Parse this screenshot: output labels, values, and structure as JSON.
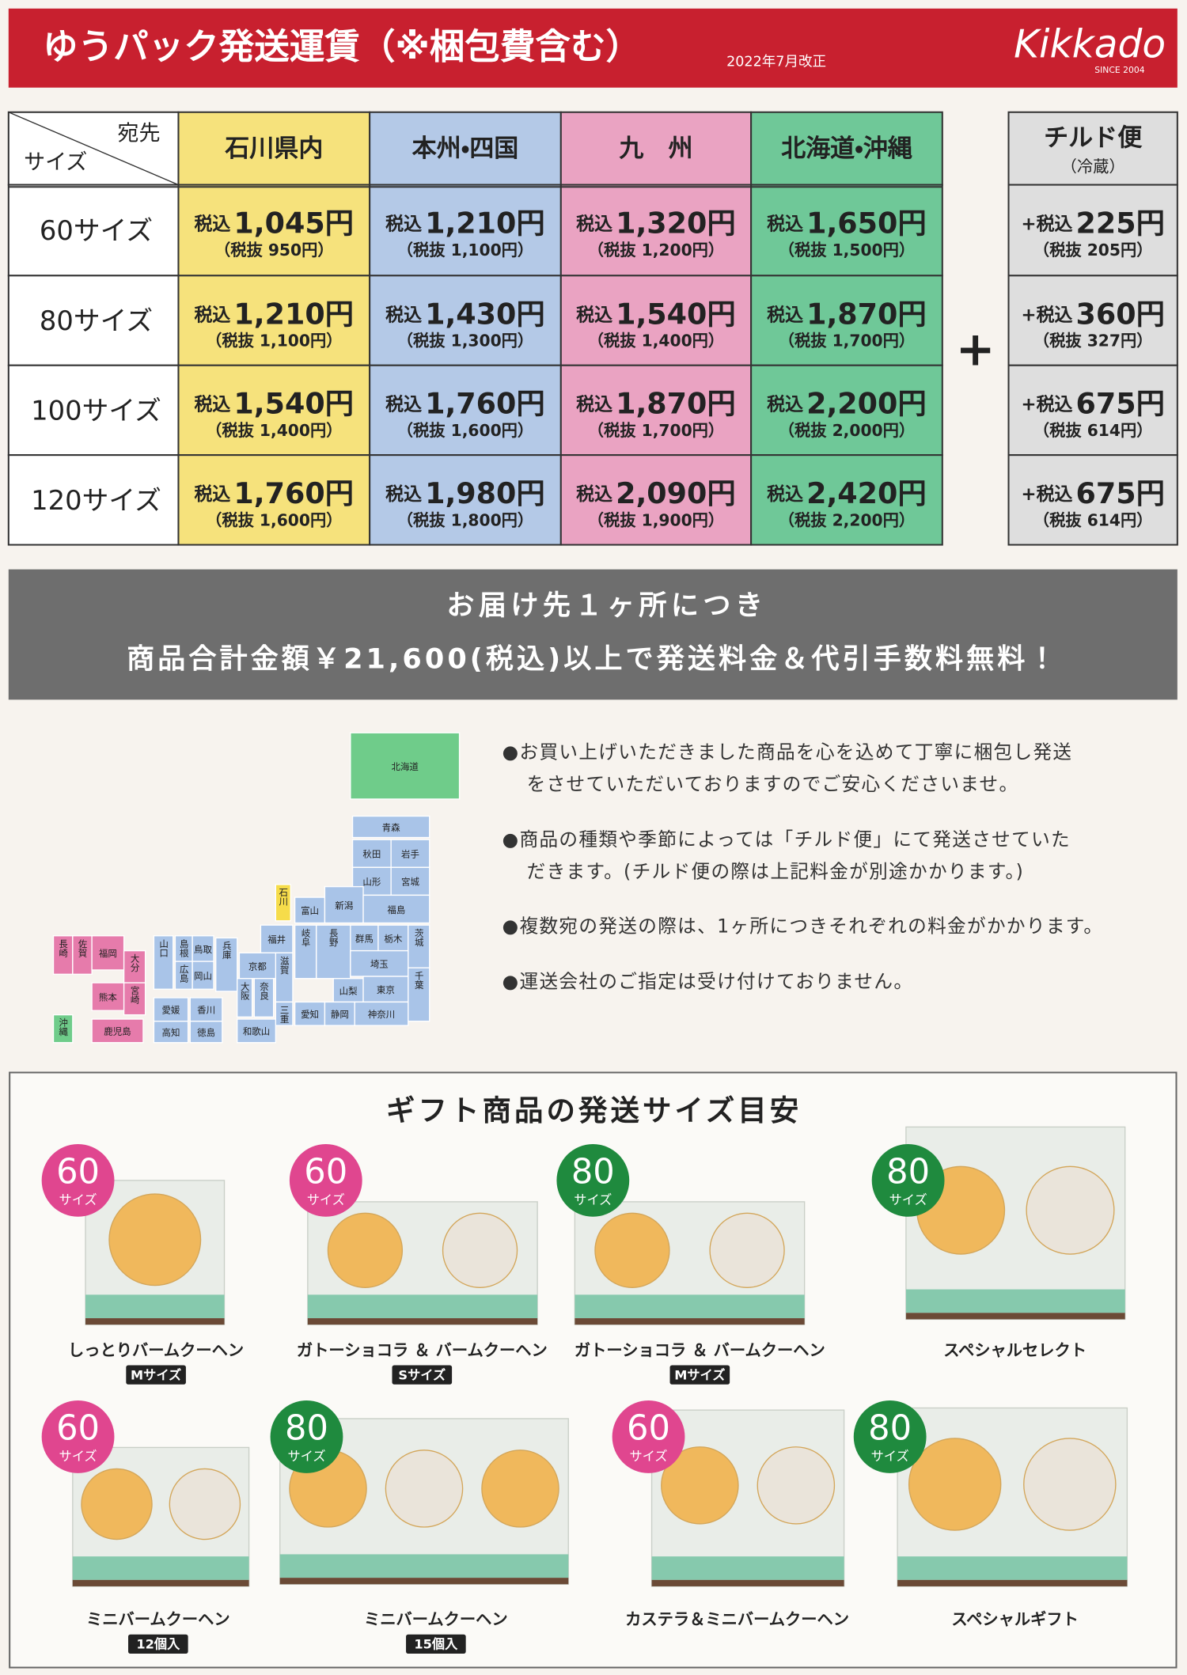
{
  "header": {
    "title": "ゆうパック発送運賃（※梱包費含む）",
    "note": "2022年7月改正",
    "logo": "Kikkado",
    "logo_sub": "SINCE 2004"
  },
  "table": {
    "corner_top": "宛先",
    "corner_bottom": "サイズ",
    "columns": [
      {
        "name": "石川県内",
        "color": "#f6e27c"
      },
      {
        "name": "本州・四国",
        "color": "#b4c9e7"
      },
      {
        "name": "九　州",
        "color": "#eaa3c2"
      },
      {
        "name": "北海道・沖縄",
        "color": "#6fc898"
      }
    ],
    "rows": [
      {
        "size": "60サイズ",
        "cells": [
          [
            "税込",
            "1,045円",
            "（税抜 950円）"
          ],
          [
            "税込",
            "1,210円",
            "（税抜 1,100円）"
          ],
          [
            "税込",
            "1,320円",
            "（税抜 1,200円）"
          ],
          [
            "税込",
            "1,650円",
            "（税抜 1,500円）"
          ]
        ]
      },
      {
        "size": "80サイズ",
        "cells": [
          [
            "税込",
            "1,210円",
            "（税抜 1,100円）"
          ],
          [
            "税込",
            "1,430円",
            "（税抜 1,300円）"
          ],
          [
            "税込",
            "1,540円",
            "（税抜 1,400円）"
          ],
          [
            "税込",
            "1,870円",
            "（税抜 1,700円）"
          ]
        ]
      },
      {
        "size": "100サイズ",
        "cells": [
          [
            "税込",
            "1,540円",
            "（税抜 1,400円）"
          ],
          [
            "税込",
            "1,760円",
            "（税抜 1,600円）"
          ],
          [
            "税込",
            "1,870円",
            "（税抜 1,700円）"
          ],
          [
            "税込",
            "2,200円",
            "（税抜 2,000円）"
          ]
        ]
      },
      {
        "size": "120サイズ",
        "cells": [
          [
            "税込",
            "1,760円",
            "（税抜 1,600円）"
          ],
          [
            "税込",
            "1,980円",
            "（税抜 1,800円）"
          ],
          [
            "税込",
            "2,090円",
            "（税抜 1,900円）"
          ],
          [
            "税込",
            "2,420円",
            "（税抜 2,200円）"
          ]
        ]
      }
    ]
  },
  "plus": "+",
  "chilled": {
    "title": "チルド便",
    "subtitle": "（冷蔵）",
    "color": "#dedede",
    "cells": [
      [
        "+税込",
        "225円",
        "（税抜 205円）"
      ],
      [
        "+税込",
        "360円",
        "（税抜 327円）"
      ],
      [
        "+税込",
        "675円",
        "（税抜 614円）"
      ],
      [
        "+税込",
        "675円",
        "（税抜 614円）"
      ]
    ]
  },
  "banner": {
    "lines": [
      "お届け先１ヶ所につき",
      "商品合計金額￥21,600(税込)以上で発送料金＆代引手数料無料！"
    ]
  },
  "map": {
    "labels": [
      "北海道",
      "青森",
      "秋田",
      "岩手",
      "山形",
      "宮城",
      "石川",
      "富山",
      "新潟",
      "福島",
      "群馬",
      "栃木",
      "茨城",
      "長野",
      "福井",
      "岐阜",
      "埼玉",
      "千葉",
      "山梨",
      "東京",
      "愛知",
      "静岡",
      "神奈川",
      "滋賀",
      "京都",
      "兵庫",
      "大阪",
      "奈良",
      "三重",
      "和歌山",
      "鳥取",
      "島根",
      "岡山",
      "広島",
      "山口",
      "愛媛",
      "香川",
      "高知",
      "徳島",
      "長崎",
      "佐賀",
      "福岡",
      "大分",
      "熊本",
      "宮崎",
      "鹿児島",
      "沖縄"
    ]
  },
  "notes": [
    [
      "●お買い上げいただきました商品を心を込めて丁寧に梱包し発送",
      "をさせていただいておりますのでご安心くださいませ。"
    ],
    [
      "●商品の種類や季節によっては「チルド便」にて発送させていた",
      "だきます。(チルド便の際は上記料金が別途かかります。)"
    ],
    [
      "●複数宛の発送の際は、1ヶ所につきそれぞれの料金がかかります。"
    ],
    [
      "●運送会社のご指定は受け付けておりません。"
    ]
  ],
  "gifts": {
    "title": "ギフト商品の発送サイズ目安",
    "items": [
      {
        "size": "60",
        "unit": "サイズ",
        "color": "#e0468f",
        "name": "しっとりバームクーヘン",
        "tag": "Mサイズ"
      },
      {
        "size": "60",
        "unit": "サイズ",
        "color": "#e0468f",
        "name": "ガトーショコラ ＆ バームクーヘン",
        "tag": "Sサイズ"
      },
      {
        "size": "80",
        "unit": "サイズ",
        "color": "#1f8a3e",
        "name": "ガトーショコラ ＆ バームクーヘン",
        "tag": "Mサイズ"
      },
      {
        "size": "80",
        "unit": "サイズ",
        "color": "#1f8a3e",
        "name": "スペシャルセレクト"
      },
      {
        "size": "60",
        "unit": "サイズ",
        "color": "#e0468f",
        "name": "ミニバームクーヘン",
        "tag": "12個入"
      },
      {
        "size": "80",
        "unit": "サイズ",
        "color": "#1f8a3e",
        "name": "ミニバームクーヘン",
        "tag": "15個入"
      },
      {
        "size": "60",
        "unit": "サイズ",
        "color": "#e0468f",
        "name": "カステラ＆ミニバームクーヘン"
      },
      {
        "size": "80",
        "unit": "サイズ",
        "color": "#1f8a3e",
        "name": "スペシャルギフト"
      }
    ]
  }
}
